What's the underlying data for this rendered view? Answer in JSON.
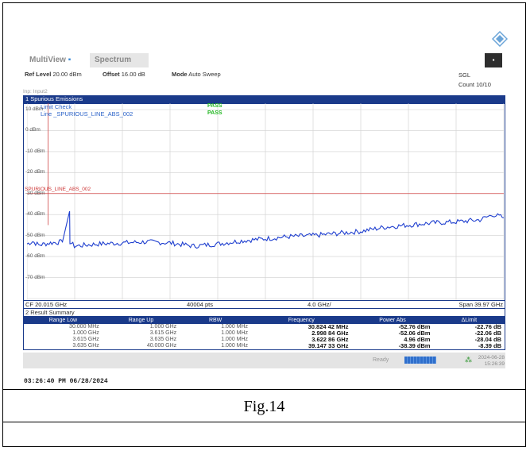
{
  "app": {
    "tab_multiview": "MultiView",
    "tab_spectrum": "Spectrum",
    "dark_button": "▪"
  },
  "params": {
    "ref_level_label": "Ref Level",
    "ref_level_value": "20.00 dBm",
    "offset_label": "Offset",
    "offset_value": "16.00 dB",
    "mode_label": "Mode",
    "mode_value": "Auto Sweep",
    "sgl": "SGL",
    "count": "Count 10/10",
    "input": "Inp: Input2"
  },
  "panel": {
    "title": "1 Spurious Emissions",
    "limit_check": "Limit Check",
    "line_label": "Line _SPURIOUS_LINE_ABS_002",
    "pass1": "PASS",
    "pass2": "PASS",
    "limit_line_label": "SPURIOUS_LINE_ABS_002"
  },
  "chart_data": {
    "type": "line",
    "title": "",
    "xlabel": "",
    "ylabel": "",
    "x_range_ghz": [
      0.03,
      40.0
    ],
    "ylim": [
      -80,
      10
    ],
    "yticks": [
      "10 dBm",
      "0 dBm",
      "-10 dBm",
      "-20 dBm",
      "-30 dBm",
      "-40 dBm",
      "-50 dBm",
      "-60 dBm",
      "-70 dBm"
    ],
    "limit_dbm": -30,
    "grid": true,
    "series": [
      {
        "x": [
          0.03,
          0.5,
          1.0,
          2.0,
          3.0,
          3.6,
          3.63,
          4.0,
          6.0,
          8.0,
          10.0,
          12.0,
          14.0,
          16.0,
          18.0,
          20.0,
          22.0,
          24.0,
          26.0,
          28.0,
          30.0,
          32.0,
          34.0,
          36.0,
          38.0,
          39.1,
          40.0
        ],
        "y": [
          -54,
          -52.8,
          -54.5,
          -53.5,
          -53,
          -38.4,
          -53,
          -55,
          -54,
          -53.5,
          -53,
          -53.5,
          -55,
          -54,
          -52.5,
          -51.5,
          -50.5,
          -50,
          -49,
          -48,
          -46,
          -45,
          -44,
          -43.5,
          -42.5,
          -40,
          -41.5
        ]
      }
    ]
  },
  "xaxis": {
    "cf": "CF 20.015 GHz",
    "pts": "40004 pts",
    "div": "4.0 GHz/",
    "span": "Span 39.97 GHz"
  },
  "result_summary": {
    "title": "2 Result Summary",
    "headers": [
      "Range Low",
      "Range Up",
      "RBW",
      "Frequency",
      "Power Abs",
      "ΔLimit"
    ],
    "rows": [
      [
        "30.000 MHz",
        "1.000 GHz",
        "1.000 MHz",
        "30.824 42 MHz",
        "-52.76 dBm",
        "-22.76 dB"
      ],
      [
        "1.000 GHz",
        "3.615 GHz",
        "1.000 MHz",
        "2.998 84 GHz",
        "-52.06 dBm",
        "-22.06 dB"
      ],
      [
        "3.615 GHz",
        "3.635 GHz",
        "1.000 MHz",
        "3.622 86 GHz",
        "4.96 dBm",
        "-28.04 dB"
      ],
      [
        "3.635 GHz",
        "40.000 GHz",
        "1.000 MHz",
        "39.147 33 GHz",
        "-38.39 dBm",
        "-8.39 dB"
      ]
    ]
  },
  "status": {
    "ready": "Ready",
    "date": "2024-06-28",
    "time": "15:26:39"
  },
  "timestamp": "03:26:40 PM  06/28/2024",
  "figure_caption": "Fig.14"
}
